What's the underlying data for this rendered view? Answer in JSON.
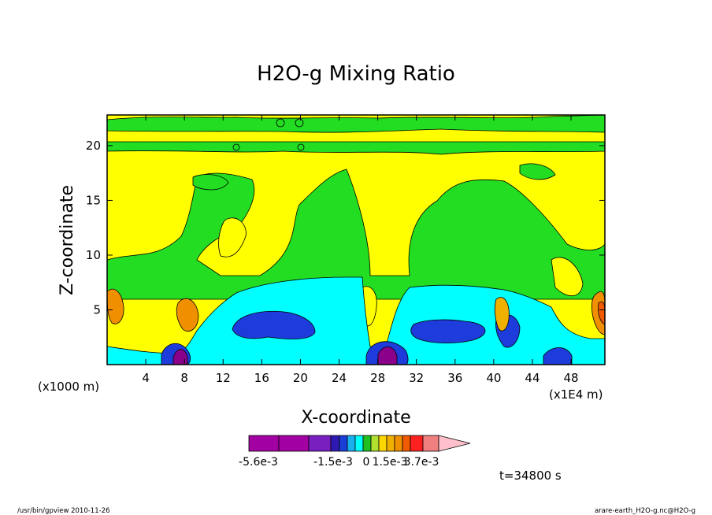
{
  "chart_data": {
    "type": "heatmap",
    "title": "H2O-g Mixing Ratio",
    "xlabel": "X-coordinate",
    "ylabel": "Z-coordinate",
    "x_unit_left": "(x1000 m)",
    "x_unit_right": "(x1E4 m)",
    "xlim": [
      0,
      51.5
    ],
    "ylim": [
      0,
      22.8
    ],
    "x_ticks": [
      4,
      8,
      12,
      16,
      20,
      24,
      28,
      32,
      36,
      40,
      44,
      48
    ],
    "y_ticks": [
      5,
      10,
      15,
      20
    ],
    "x_tick_labels": [
      "4",
      "8",
      "12",
      "16",
      "20",
      "24",
      "28",
      "32",
      "36",
      "40",
      "44",
      "48"
    ],
    "y_tick_labels": [
      "5",
      "10",
      "15",
      "20"
    ],
    "colorbar": {
      "colors": [
        "#a300a3",
        "#a300a3",
        "#7a1fbf",
        "#2e1ab3",
        "#1a3fd9",
        "#1ab0f0",
        "#00ffff",
        "#20c020",
        "#b0e030",
        "#ffd700",
        "#f0b000",
        "#f09000",
        "#f05a00",
        "#ff2020",
        "#f08080",
        "#ffc0cb"
      ],
      "labels": [
        "-5.6e-3",
        "-1.5e-3",
        "0",
        "1.5e-3",
        "3.7e-3"
      ]
    },
    "regions": [
      {
        "name": "yellow-background",
        "value": "positive-low",
        "color": "#ffff00"
      },
      {
        "name": "green-anomaly",
        "value": "near-zero-negative",
        "color": "#22dd22"
      },
      {
        "name": "cyan-layer",
        "value": "negative",
        "color": "#00ffff"
      },
      {
        "name": "blue-core",
        "value": "strong-negative",
        "color": "#1e3cdc"
      },
      {
        "name": "purple-core",
        "value": "minimum",
        "color": "#8b008b"
      },
      {
        "name": "orange-core",
        "value": "maximum",
        "color": "#f09000"
      }
    ]
  },
  "annotations": {
    "time": "t=34800 s",
    "footer_left": "/usr/bin/gpview  2010-11-26",
    "footer_right": "arare-earth_H2O-g.nc@H2O-g"
  }
}
